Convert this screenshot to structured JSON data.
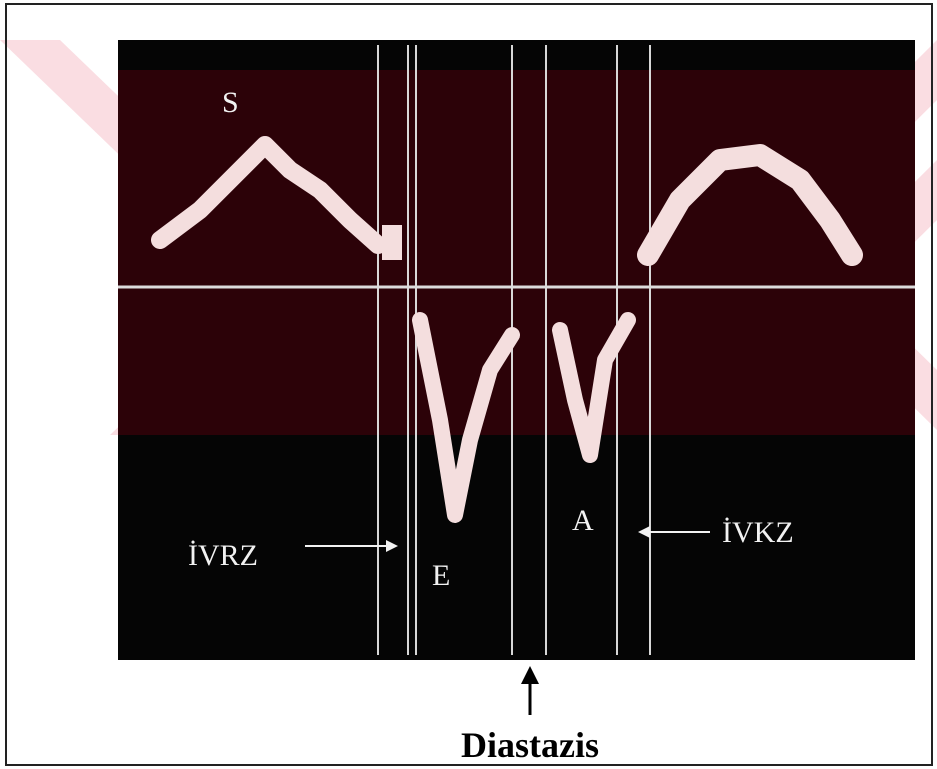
{
  "labels": {
    "s": "S",
    "ivrz": "İVRZ",
    "e": "E",
    "a": "A",
    "ivkz": "İVKZ"
  },
  "caption": "Diastazis"
}
